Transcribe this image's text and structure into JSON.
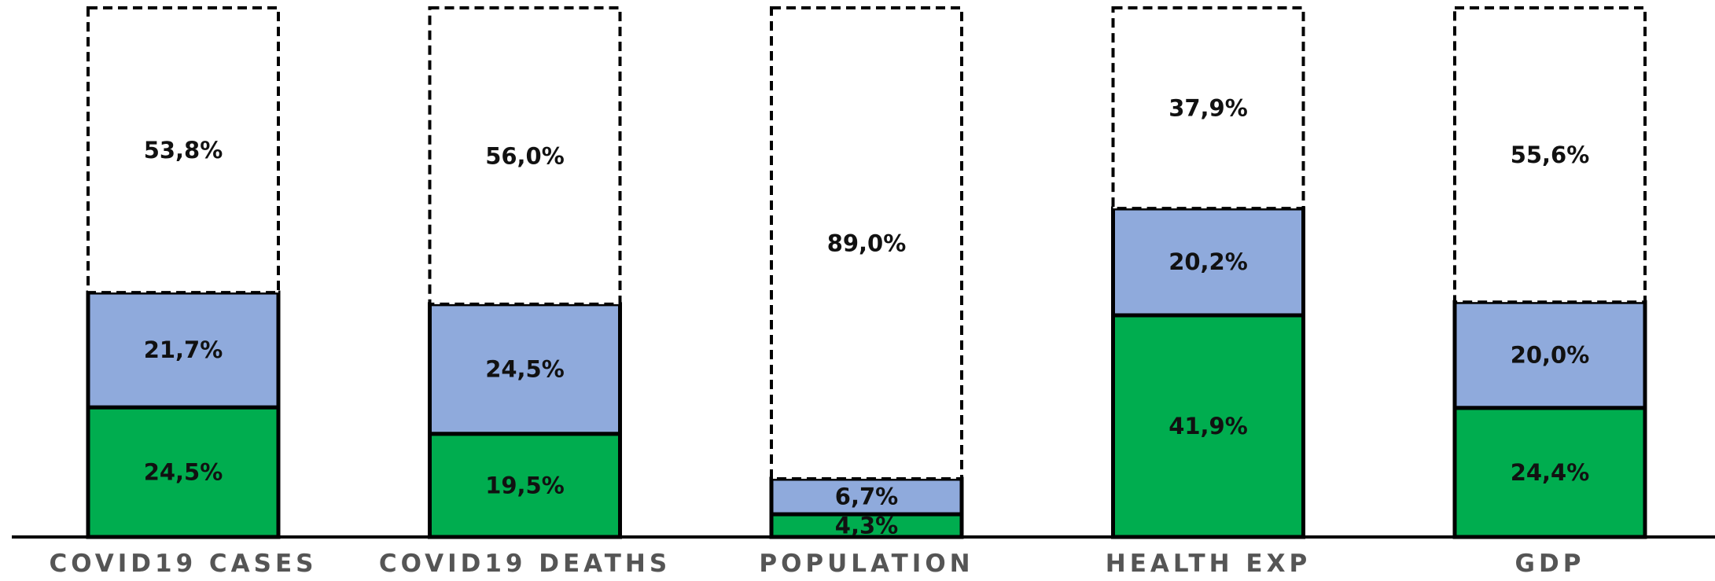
{
  "chart_data": {
    "type": "bar",
    "stacked": true,
    "categories": [
      "COVID19 CASES",
      "COVID19 DEATHS",
      "POPULATION",
      "HEALTH EXP",
      "GDP"
    ],
    "series": [
      {
        "values": [
          24.5,
          19.5,
          4.3,
          41.9,
          24.4
        ],
        "labels": [
          "24,5%",
          "19,5%",
          "4,3%",
          "41,9%",
          "24,4%"
        ],
        "color": "#00ad4f",
        "border": "solid"
      },
      {
        "values": [
          21.7,
          24.5,
          6.7,
          20.2,
          20.0
        ],
        "labels": [
          "21,7%",
          "24,5%",
          "6,7%",
          "20,2%",
          "20,0%"
        ],
        "color": "#8faadc",
        "border": "solid"
      },
      {
        "values": [
          53.8,
          56.0,
          89.0,
          37.9,
          55.6
        ],
        "labels": [
          "53,8%",
          "56,0%",
          "89,0%",
          "37,9%",
          "55,6%"
        ],
        "color": "#ffffff",
        "border": "dashed"
      }
    ],
    "ylim": [
      0,
      100
    ],
    "grid": false,
    "legend": "none"
  }
}
